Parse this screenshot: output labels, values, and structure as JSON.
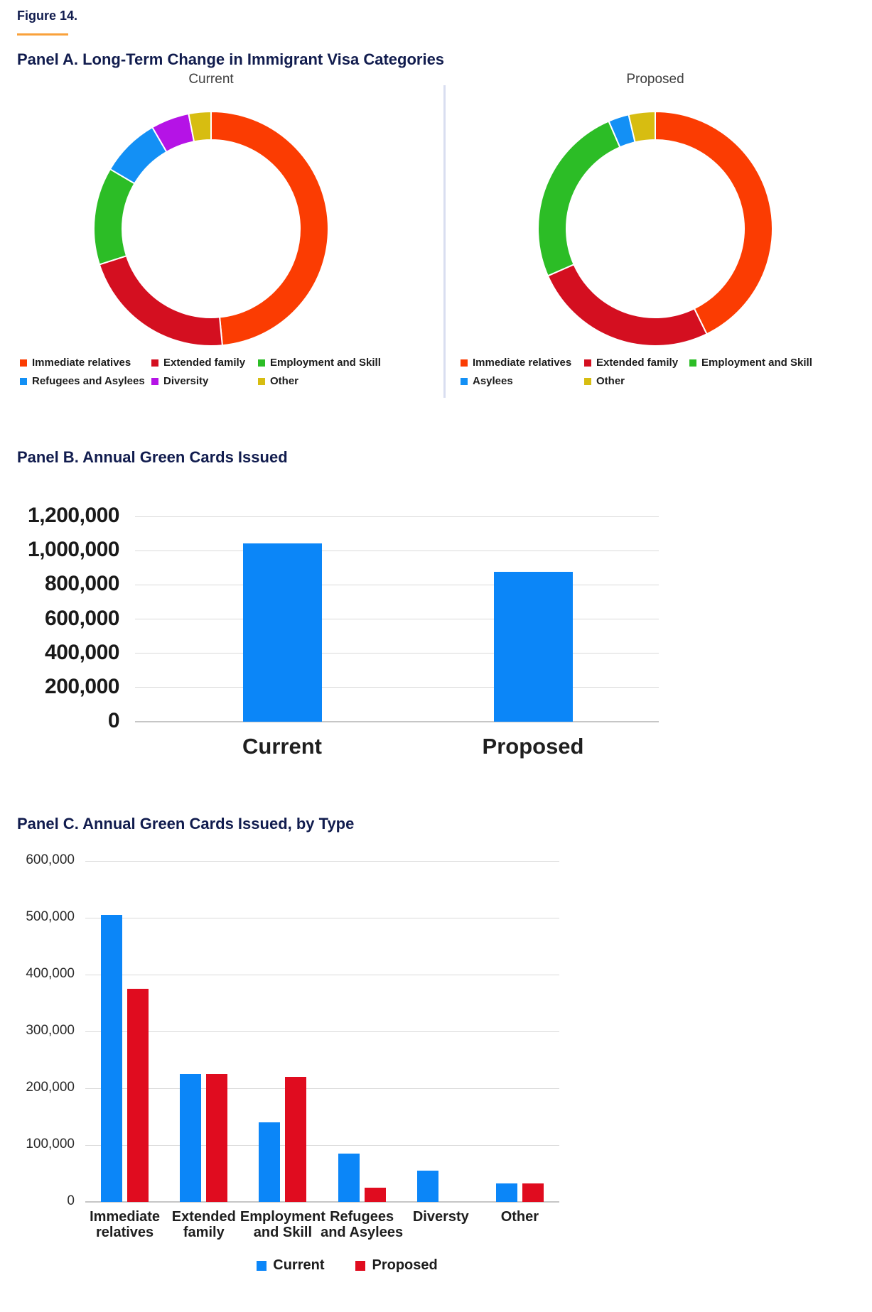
{
  "page": {
    "figure_label": "Figure 14.",
    "panel_a_title": "Panel A. Long-Term Change in Immigrant Visa Categories",
    "colors": {
      "heading_navy": "#111c4e",
      "accent_orange": "#f9a13b",
      "divider": "#d9def0",
      "gridline": "#dadada",
      "bar_blue": "#0b86f8",
      "bar_red": "#e00c1f"
    }
  },
  "chart_data": [
    {
      "type": "pie",
      "donut": true,
      "title": "Current",
      "legend_position": "bottom",
      "slices": [
        {
          "label": "Immediate relatives",
          "value": 505000,
          "color": "#fb3c02"
        },
        {
          "label": "Extended family",
          "value": 225000,
          "color": "#d40f20"
        },
        {
          "label": "Employment and Skill",
          "value": 140000,
          "color": "#2cbd26"
        },
        {
          "label": "Refugees and Asylees",
          "value": 85000,
          "color": "#1390f5"
        },
        {
          "label": "Diversity",
          "value": 55000,
          "color": "#b513e6"
        },
        {
          "label": "Other",
          "value": 32000,
          "color": "#d7bd11"
        }
      ]
    },
    {
      "type": "pie",
      "donut": true,
      "title": "Proposed",
      "legend_position": "bottom",
      "slices": [
        {
          "label": "Immediate relatives",
          "value": 375000,
          "color": "#fb3c02"
        },
        {
          "label": "Extended family",
          "value": 225000,
          "color": "#d40f20"
        },
        {
          "label": "Employment and Skill",
          "value": 220000,
          "color": "#2cbd26"
        },
        {
          "label": "Asylees",
          "value": 25000,
          "color": "#1390f5"
        },
        {
          "label": "Other",
          "value": 32000,
          "color": "#d7bd11"
        }
      ]
    },
    {
      "type": "bar",
      "title": "Panel B. Annual Green Cards Issued",
      "categories": [
        "Current",
        "Proposed"
      ],
      "values": [
        1042000,
        877000
      ],
      "bar_color": "#0b86f8",
      "ylim": [
        0,
        1200000
      ],
      "ytick_step": 200000,
      "yticks": [
        "0",
        "200,000",
        "400,000",
        "600,000",
        "800,000",
        "1,000,000",
        "1,200,000"
      ],
      "grid": true,
      "legend_position": "none"
    },
    {
      "type": "bar",
      "grouped": true,
      "title": "Panel C. Annual Green Cards Issued, by Type",
      "categories": [
        "Immediate\nrelatives",
        "Extended\nfamily",
        "Employment\nand Skill",
        "Refugees\nand Asylees",
        "Diversty",
        "Other"
      ],
      "series": [
        {
          "name": "Current",
          "color": "#0b86f8",
          "values": [
            505000,
            225000,
            140000,
            85000,
            55000,
            32000
          ]
        },
        {
          "name": "Proposed",
          "color": "#e00c1f",
          "values": [
            375000,
            225000,
            220000,
            25000,
            0,
            32000
          ]
        }
      ],
      "ylim": [
        0,
        600000
      ],
      "ytick_step": 100000,
      "yticks": [
        "0",
        "100,000",
        "200,000",
        "300,000",
        "400,000",
        "500,000",
        "600,000"
      ],
      "grid": true,
      "legend_position": "bottom"
    }
  ]
}
